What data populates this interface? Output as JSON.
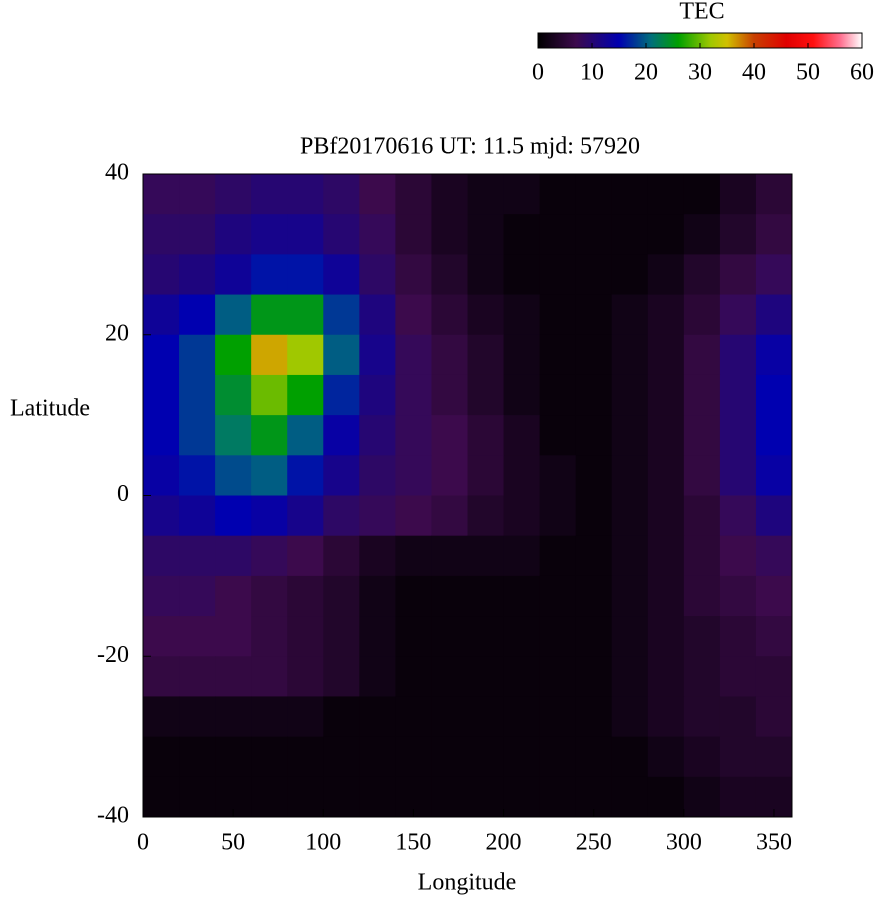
{
  "chart_data": {
    "type": "heatmap",
    "title": "PBf20170616  UT: 11.5  mjd: 57920",
    "x_label": "Longitude",
    "y_label": "Latitude",
    "colorbar_label": "TEC",
    "x": [
      10,
      30,
      50,
      70,
      90,
      110,
      130,
      150,
      170,
      190,
      210,
      230,
      250,
      270,
      290,
      310,
      330,
      350
    ],
    "y": [
      37.5,
      32.5,
      27.5,
      22.5,
      17.5,
      12.5,
      7.5,
      2.5,
      -2.5,
      -7.5,
      -12.5,
      -17.5,
      -22.5,
      -27.5,
      -32.5,
      -37.5
    ],
    "z": [
      [
        8,
        8,
        9,
        10,
        10,
        9,
        7,
        5,
        3,
        2,
        2,
        1,
        1,
        1,
        1,
        1,
        3,
        5
      ],
      [
        9,
        9,
        11,
        12,
        12,
        10,
        8,
        5,
        3,
        2,
        1,
        1,
        1,
        1,
        1,
        2,
        4,
        6
      ],
      [
        10,
        11,
        13,
        16,
        16,
        13,
        9,
        6,
        4,
        2,
        1,
        1,
        1,
        1,
        2,
        4,
        6,
        8
      ],
      [
        13,
        15,
        20,
        25,
        25,
        18,
        11,
        7,
        5,
        3,
        2,
        1,
        1,
        2,
        3,
        5,
        8,
        11
      ],
      [
        15,
        18,
        26,
        36,
        32,
        20,
        12,
        8,
        6,
        4,
        2,
        1,
        1,
        2,
        3,
        6,
        10,
        14
      ],
      [
        15,
        18,
        24,
        30,
        26,
        17,
        11,
        8,
        6,
        4,
        2,
        1,
        1,
        2,
        3,
        6,
        10,
        15
      ],
      [
        15,
        18,
        22,
        25,
        20,
        14,
        10,
        8,
        7,
        5,
        3,
        1,
        1,
        2,
        3,
        6,
        10,
        15
      ],
      [
        14,
        16,
        19,
        20,
        16,
        12,
        9,
        8,
        7,
        5,
        3,
        2,
        1,
        2,
        3,
        6,
        10,
        14
      ],
      [
        12,
        13,
        15,
        14,
        12,
        9,
        8,
        7,
        6,
        4,
        3,
        2,
        1,
        2,
        3,
        5,
        8,
        11
      ],
      [
        9,
        9,
        9,
        8,
        7,
        5,
        3,
        2,
        2,
        2,
        2,
        1,
        1,
        2,
        3,
        5,
        7,
        8
      ],
      [
        8,
        8,
        7,
        6,
        5,
        4,
        2,
        1,
        1,
        1,
        1,
        1,
        1,
        2,
        3,
        5,
        6,
        7
      ],
      [
        7,
        7,
        7,
        6,
        5,
        4,
        2,
        1,
        1,
        1,
        1,
        1,
        1,
        2,
        3,
        4,
        5,
        6
      ],
      [
        6,
        6,
        6,
        6,
        5,
        4,
        2,
        1,
        1,
        1,
        1,
        1,
        1,
        2,
        3,
        4,
        5,
        5
      ],
      [
        2,
        2,
        2,
        2,
        2,
        1,
        1,
        1,
        1,
        1,
        1,
        1,
        1,
        2,
        3,
        4,
        4,
        5
      ],
      [
        1,
        1,
        1,
        1,
        1,
        1,
        1,
        1,
        1,
        1,
        1,
        1,
        1,
        1,
        2,
        3,
        4,
        4
      ],
      [
        1,
        1,
        1,
        1,
        1,
        1,
        1,
        1,
        1,
        1,
        1,
        1,
        1,
        1,
        1,
        2,
        3,
        3
      ]
    ],
    "xlim": [
      0,
      360
    ],
    "xticks": [
      0,
      50,
      100,
      150,
      200,
      250,
      300,
      350
    ],
    "ylim": [
      -40,
      40
    ],
    "yticks": [
      -40,
      -20,
      0,
      20,
      40
    ],
    "clim": [
      0,
      60
    ],
    "cticks": [
      0,
      10,
      20,
      30,
      40,
      50,
      60
    ],
    "colormap": [
      {
        "value": 0,
        "color": "#000000"
      },
      {
        "value": 7,
        "color": "#3c0a4c"
      },
      {
        "value": 15,
        "color": "#0000b0"
      },
      {
        "value": 21,
        "color": "#00707a"
      },
      {
        "value": 26,
        "color": "#00a000"
      },
      {
        "value": 32,
        "color": "#a0c800"
      },
      {
        "value": 35,
        "color": "#d0c000"
      },
      {
        "value": 40,
        "color": "#c84000"
      },
      {
        "value": 46,
        "color": "#e00000"
      },
      {
        "value": 51,
        "color": "#ff1010"
      },
      {
        "value": 56,
        "color": "#ff7090"
      },
      {
        "value": 60,
        "color": "#ffffff"
      }
    ]
  }
}
